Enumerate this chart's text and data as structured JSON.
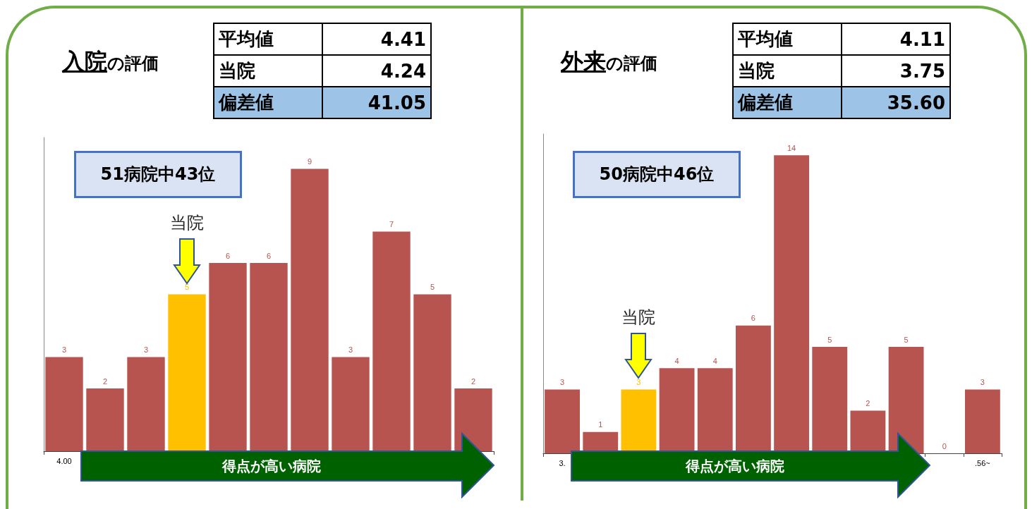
{
  "chart_data": [
    {
      "type": "bar",
      "title": "入院の評価",
      "categories": [
        "4.00",
        null,
        null,
        null,
        null,
        null,
        null,
        null,
        null,
        null,
        null
      ],
      "values": [
        3,
        2,
        3,
        5,
        6,
        6,
        9,
        3,
        7,
        5,
        2
      ],
      "colors": [
        "#b85450",
        "#b85450",
        "#b85450",
        "#ffc000",
        "#b85450",
        "#b85450",
        "#b85450",
        "#b85450",
        "#b85450",
        "#b85450",
        "#b85450"
      ],
      "data_labels": true,
      "tick_labels": "x",
      "annotations": [
        "平均値",
        "4.41",
        "当院",
        "4.24",
        "偏差値",
        "41.05",
        "51病院中43位",
        "当院",
        "得点が高い病院"
      ]
    },
    {
      "type": "bar",
      "title": "外来の評価",
      "categories": [
        "3.",
        null,
        null,
        null,
        null,
        null,
        null,
        null,
        null,
        null,
        null,
        ".56~"
      ],
      "values": [
        3,
        1,
        3,
        4,
        4,
        6,
        14,
        5,
        2,
        5,
        0,
        3
      ],
      "colors": [
        "#b85450",
        "#b85450",
        "#ffc000",
        "#b85450",
        "#b85450",
        "#b85450",
        "#b85450",
        "#b85450",
        "#b85450",
        "#b85450",
        "#b85450",
        "#b85450"
      ],
      "data_labels": true,
      "tick_labels": "x",
      "annotations": [
        "平均値",
        "4.11",
        "当院",
        "3.75",
        "偏差値",
        "35.60",
        "50病院中46位",
        "当院",
        "得点が高い病院"
      ]
    }
  ]
}
